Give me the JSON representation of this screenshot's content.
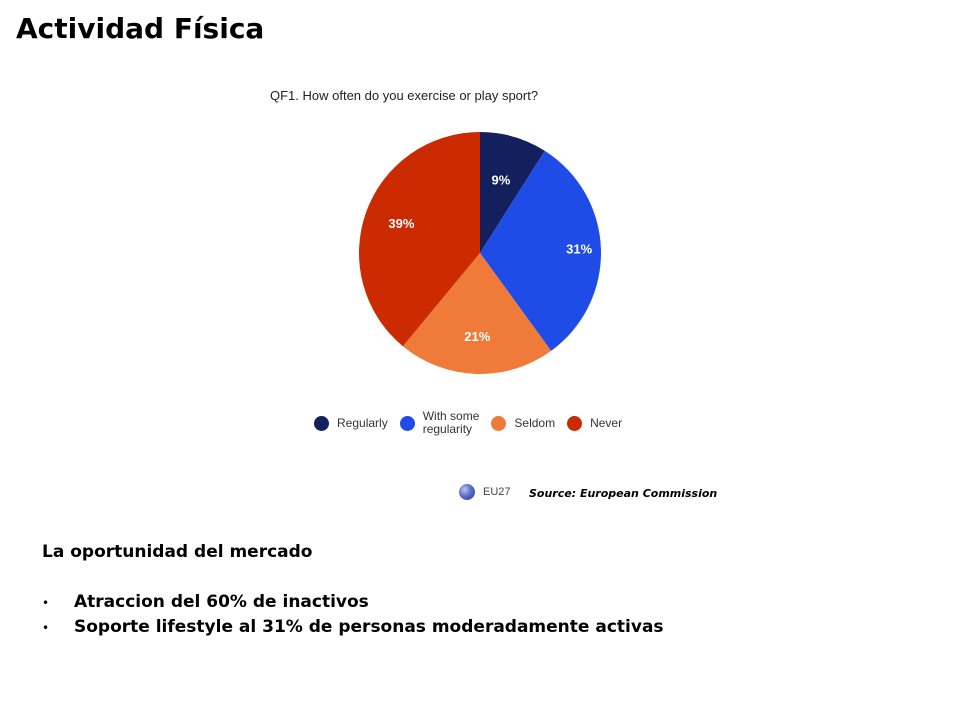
{
  "slide": {
    "title": "Actividad Física",
    "source": "Source: European Commission",
    "opportunity_heading": "La oportunidad del mercado",
    "bullets": [
      "Atraccion del 60% de inactivos",
      "Soporte lifestyle al 31% de personas moderadamente activas"
    ],
    "bullet_icon": "bullet-dot"
  },
  "chart_data": {
    "type": "pie",
    "title": "QF1. How often do you exercise or play sport?",
    "categories": [
      "Regularly",
      "With some\nregularity",
      "Seldom",
      "Never"
    ],
    "values": [
      9,
      31,
      21,
      39
    ],
    "labels": [
      "9%",
      "31%",
      "21%",
      "39%"
    ],
    "colors": [
      "#14205e",
      "#1f4be6",
      "#f07a3a",
      "#cc2a00"
    ],
    "legend_position": "bottom",
    "badge": "EU27"
  }
}
